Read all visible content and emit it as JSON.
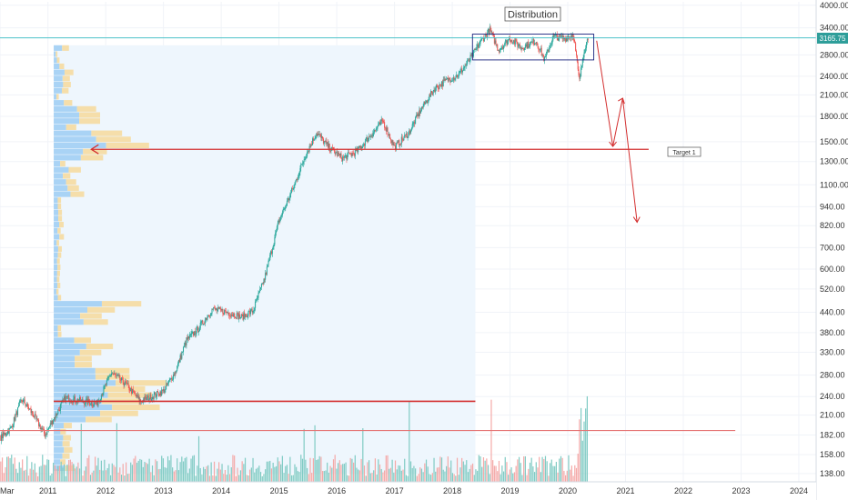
{
  "chart_data": {
    "type": "candlestick",
    "scale": "log",
    "ylim": [
      130,
      4100
    ],
    "xlim": [
      2010.17,
      2024.3
    ],
    "y_ticks": [
      "4000.00",
      "3400.00",
      "2800.00",
      "2400.00",
      "2100.00",
      "1800.00",
      "1500.00",
      "1300.00",
      "1100.00",
      "940.00",
      "820.00",
      "700.00",
      "600.00",
      "520.00",
      "440.00",
      "380.00",
      "330.00",
      "280.00",
      "240.00",
      "210.00",
      "182.00",
      "158.00",
      "138.00"
    ],
    "x_ticks": [
      {
        "label": "Mar",
        "x": 2010.17
      },
      {
        "label": "2011",
        "x": 2011.0
      },
      {
        "label": "2012",
        "x": 2012.0
      },
      {
        "label": "2013",
        "x": 2013.0
      },
      {
        "label": "2014",
        "x": 2014.0
      },
      {
        "label": "2015",
        "x": 2015.0
      },
      {
        "label": "2016",
        "x": 2016.0
      },
      {
        "label": "2017",
        "x": 2017.0
      },
      {
        "label": "2018",
        "x": 2018.0
      },
      {
        "label": "2019",
        "x": 2019.0
      },
      {
        "label": "2020",
        "x": 2020.0
      },
      {
        "label": "2021",
        "x": 2021.0
      },
      {
        "label": "2022",
        "x": 2022.0
      },
      {
        "label": "2023",
        "x": 2023.0
      },
      {
        "label": "2024",
        "x": 2024.0
      }
    ],
    "price_path": [
      {
        "x": 2010.17,
        "y": 178
      },
      {
        "x": 2010.35,
        "y": 190
      },
      {
        "x": 2010.55,
        "y": 235
      },
      {
        "x": 2010.75,
        "y": 210
      },
      {
        "x": 2010.95,
        "y": 182
      },
      {
        "x": 2011.1,
        "y": 205
      },
      {
        "x": 2011.3,
        "y": 238
      },
      {
        "x": 2011.6,
        "y": 232
      },
      {
        "x": 2011.85,
        "y": 228
      },
      {
        "x": 2012.1,
        "y": 285
      },
      {
        "x": 2012.35,
        "y": 262
      },
      {
        "x": 2012.6,
        "y": 232
      },
      {
        "x": 2012.8,
        "y": 240
      },
      {
        "x": 2013.0,
        "y": 250
      },
      {
        "x": 2013.2,
        "y": 285
      },
      {
        "x": 2013.4,
        "y": 360
      },
      {
        "x": 2013.6,
        "y": 390
      },
      {
        "x": 2013.85,
        "y": 450
      },
      {
        "x": 2014.1,
        "y": 440
      },
      {
        "x": 2014.35,
        "y": 425
      },
      {
        "x": 2014.55,
        "y": 445
      },
      {
        "x": 2014.75,
        "y": 560
      },
      {
        "x": 2015.0,
        "y": 850
      },
      {
        "x": 2015.25,
        "y": 1080
      },
      {
        "x": 2015.45,
        "y": 1350
      },
      {
        "x": 2015.65,
        "y": 1600
      },
      {
        "x": 2015.85,
        "y": 1450
      },
      {
        "x": 2016.1,
        "y": 1330
      },
      {
        "x": 2016.35,
        "y": 1400
      },
      {
        "x": 2016.6,
        "y": 1580
      },
      {
        "x": 2016.8,
        "y": 1740
      },
      {
        "x": 2017.0,
        "y": 1440
      },
      {
        "x": 2017.25,
        "y": 1600
      },
      {
        "x": 2017.45,
        "y": 1880
      },
      {
        "x": 2017.7,
        "y": 2200
      },
      {
        "x": 2017.9,
        "y": 2330
      },
      {
        "x": 2018.1,
        "y": 2420
      },
      {
        "x": 2018.3,
        "y": 2700
      },
      {
        "x": 2018.5,
        "y": 3100
      },
      {
        "x": 2018.65,
        "y": 3350
      },
      {
        "x": 2018.8,
        "y": 2900
      },
      {
        "x": 2019.0,
        "y": 3150
      },
      {
        "x": 2019.2,
        "y": 2950
      },
      {
        "x": 2019.45,
        "y": 3100
      },
      {
        "x": 2019.6,
        "y": 2700
      },
      {
        "x": 2019.75,
        "y": 3200
      },
      {
        "x": 2019.95,
        "y": 3150
      },
      {
        "x": 2020.1,
        "y": 3250
      },
      {
        "x": 2020.2,
        "y": 2300
      },
      {
        "x": 2020.28,
        "y": 2900
      },
      {
        "x": 2020.35,
        "y": 3165
      }
    ],
    "annotations": {
      "distribution_label": "Distribution",
      "target_label": "Target 1",
      "current_price": "3165.75",
      "current_price_value": 3165.75,
      "distribution_box": {
        "x0": 2018.35,
        "x1": 2020.45,
        "y0": 2700,
        "y1": 3250
      },
      "target_line": {
        "x0": 2011.75,
        "x1": 2021.4,
        "y": 1420
      },
      "support_line_1": {
        "x0": 2011.1,
        "x1": 2018.4,
        "y": 232
      },
      "support_line_2": {
        "x0": 2010.17,
        "x1": 2022.9,
        "y": 188
      },
      "projection_path": [
        {
          "x": 2020.5,
          "y": 3100
        },
        {
          "x": 2020.78,
          "y": 1450
        },
        {
          "x": 2020.95,
          "y": 2050
        },
        {
          "x": 2021.2,
          "y": 840
        }
      ]
    },
    "volume_profile_shading": {
      "x0": 2011.1,
      "x1": 2018.4
    },
    "colors": {
      "up": "#26a69a",
      "down": "#ef5350",
      "volume_up": "#80cbc4",
      "volume_down": "#f4a9a8",
      "profile_blue": "#a9d3f5",
      "profile_yellow": "#f5deaa",
      "shading": "#eef6fd",
      "red_line": "#d32f2f",
      "teal_line": "#4ec3c9",
      "price_label_bg": "#2e9e9a"
    }
  }
}
